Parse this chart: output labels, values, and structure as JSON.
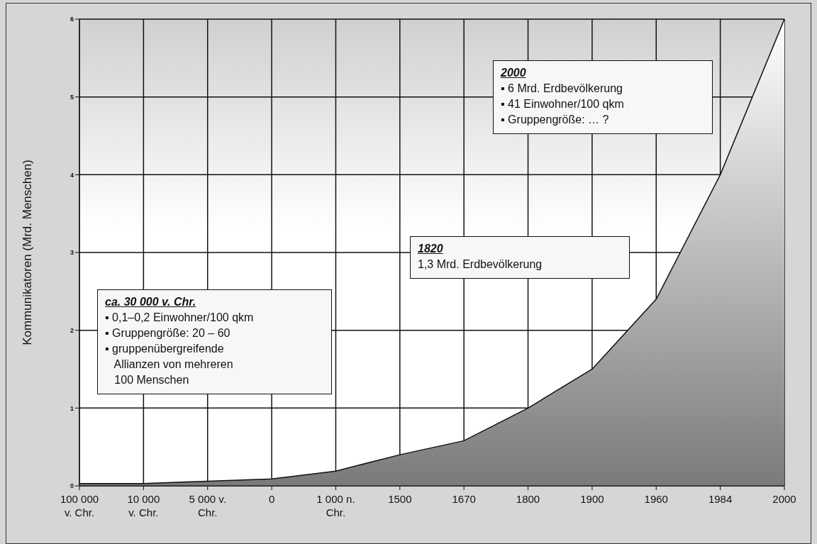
{
  "chart_data": {
    "type": "area",
    "ylabel": "Kommunikatoren (Mrd. Menschen)",
    "categories": [
      "100 000 v. Chr.",
      "10 000 v. Chr.",
      "5 000 v. Chr.",
      "0",
      "1 000 n. Chr.",
      "1500",
      "1670",
      "1800",
      "1900",
      "1960",
      "1984",
      "2000"
    ],
    "series": [
      {
        "color": "#7a7a7a",
        "values": [
          0.03,
          0.03,
          0.06,
          0.09,
          0.19,
          0.4,
          0.58,
          1.0,
          1.5,
          2.4,
          4.0,
          6.0
        ]
      }
    ],
    "ylim": [
      0,
      6
    ],
    "yticks": [
      0,
      1,
      2,
      3,
      4,
      5,
      6
    ],
    "grid": true,
    "annotations": [
      "ca. 30 000 v. Chr.\n▪ 0,1–0,2 Einwohner/100 qkm\n▪ Gruppengröße: 20 – 60\n▪ gruppenübergreifende\n   Allianzen von mehreren\n   100 Menschen",
      "1820\n1,3 Mrd. Erdbevölkerung",
      "2000\n▪ 6 Mrd. Erdbevölkerung\n▪ 41 Einwohner/100 qkm\n▪ Gruppengröße: … ?"
    ]
  }
}
